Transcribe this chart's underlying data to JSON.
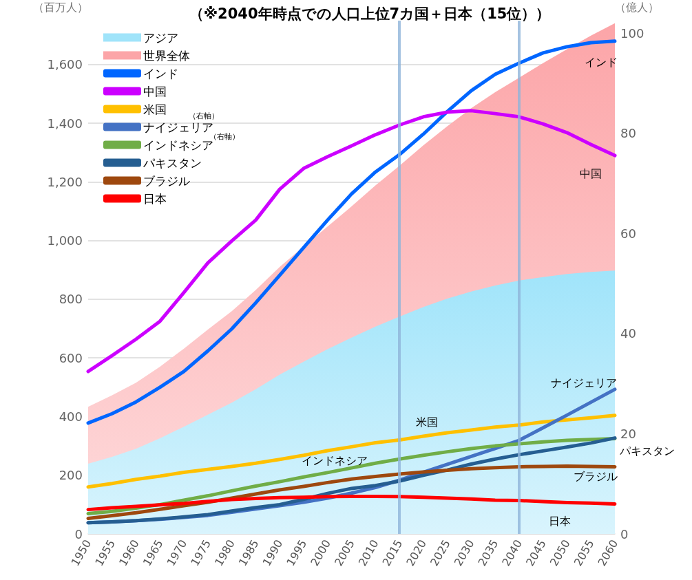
{
  "chart_data": {
    "type": "line",
    "title": "（※2040年時点での人口上位7カ国＋日本（15位））",
    "ylabel": "（百万人）",
    "y2label": "（億人）",
    "categories": [
      "1950",
      "1955",
      "1960",
      "1965",
      "1970",
      "1975",
      "1980",
      "1985",
      "1990",
      "1995",
      "2000",
      "2005",
      "2010",
      "2015",
      "2020",
      "2025",
      "2030",
      "2035",
      "2040",
      "2045",
      "2050",
      "2055",
      "2060"
    ],
    "series": [
      {
        "name": "アジア",
        "type": "area",
        "axis": "y2",
        "color": "#a0e4fa",
        "values": [
          14.0,
          15.4,
          17.0,
          19.1,
          21.4,
          23.8,
          26.2,
          28.9,
          31.8,
          34.4,
          36.9,
          39.2,
          41.4,
          43.4,
          45.3,
          47.0,
          48.4,
          49.6,
          50.6,
          51.3,
          51.9,
          52.3,
          52.6
        ]
      },
      {
        "name": "世界全体",
        "type": "area",
        "axis": "y2",
        "color": "#fca5a8",
        "values": [
          25.4,
          27.7,
          30.2,
          33.4,
          37.0,
          40.8,
          44.5,
          48.7,
          53.3,
          57.4,
          61.4,
          65.4,
          69.6,
          73.5,
          77.6,
          81.4,
          85.0,
          88.2,
          91.1,
          94.0,
          96.8,
          99.5,
          102
        ]
      },
      {
        "name": "インド",
        "color": "#0066ff",
        "values": [
          378,
          410,
          450,
          500,
          554,
          624,
          699,
          788,
          882,
          976,
          1070,
          1159,
          1234,
          1293,
          1363,
          1440,
          1511,
          1567,
          1605,
          1640,
          1661,
          1675,
          1680
        ]
      },
      {
        "name": "中国",
        "color": "#cc00ff",
        "values": [
          554,
          608,
          664,
          725,
          823,
          924,
          999,
          1070,
          1175,
          1246,
          1286,
          1323,
          1361,
          1394,
          1422,
          1438,
          1443,
          1433,
          1422,
          1398,
          1368,
          1328,
          1290
        ]
      },
      {
        "name": "米国",
        "color": "#ffc000",
        "values": [
          160,
          172,
          186,
          197,
          210,
          220,
          230,
          241,
          254,
          268,
          284,
          297,
          311,
          320,
          333,
          345,
          354,
          364,
          371,
          382,
          389,
          396,
          404
        ]
      },
      {
        "name": "ナイジェリア",
        "color": "#4472c4",
        "values": [
          38,
          41,
          45,
          50,
          56,
          63,
          74,
          85,
          96,
          108,
          122,
          139,
          158,
          183,
          210,
          237,
          264,
          291,
          319,
          362,
          405,
          449,
          493
        ]
      },
      {
        "name": "インドネシア",
        "color": "#70ad47",
        "values": [
          69,
          77,
          88,
          100,
          115,
          130,
          147,
          163,
          178,
          194,
          209,
          225,
          241,
          255,
          268,
          280,
          291,
          300,
          307,
          314,
          319,
          322,
          325
        ]
      },
      {
        "name": "パキスタン",
        "color": "#255e91",
        "values": [
          38,
          41,
          45,
          51,
          58,
          66,
          78,
          90,
          100,
          118,
          138,
          155,
          165,
          180,
          200,
          218,
          238,
          255,
          270,
          283,
          296,
          310,
          327
        ]
      },
      {
        "name": "ブラジル",
        "color": "#9e480e",
        "values": [
          53,
          62,
          72,
          84,
          96,
          108,
          122,
          136,
          150,
          162,
          175,
          187,
          196,
          204,
          211,
          217,
          222,
          226,
          229,
          230,
          231,
          230,
          229
        ]
      },
      {
        "name": "日本",
        "color": "#ff0000",
        "values": [
          83,
          89,
          94,
          99,
          104,
          111,
          117,
          121,
          124,
          125,
          127,
          128,
          128,
          127,
          125,
          122,
          119,
          115,
          114,
          110,
          107,
          105,
          102
        ]
      }
    ],
    "ylim": [
      0,
      1750
    ],
    "yticks": [
      0,
      {
        "value": 200,
        "label": "200"
      },
      {
        "value": 400,
        "label": "400"
      },
      {
        "value": 600,
        "label": "600"
      },
      {
        "value": 800,
        "label": "800"
      },
      {
        "value": 1000,
        "label": "1,000"
      },
      {
        "value": 1200,
        "label": "1,200"
      },
      {
        "value": 1400,
        "label": "1,400"
      },
      {
        "value": 1600,
        "label": "1,600"
      }
    ],
    "y2lim": [
      0,
      102.5
    ],
    "y2ticks": [
      0,
      20,
      40,
      60,
      80,
      100
    ],
    "ref_lines": [
      {
        "axis": "x",
        "value": "2015",
        "color": "#8fb4d9"
      },
      {
        "axis": "x",
        "value": "2040",
        "color": "#8fb4d9"
      }
    ],
    "annotations": [
      "インド",
      "中国",
      "ナイジェリア",
      "米国",
      "インドネシア",
      "パキスタン",
      "ブラジル",
      "日本",
      "（右軸）",
      "（右軸）"
    ],
    "grid": "y",
    "legend": "top left",
    "marker": "none",
    "line_style": "solid"
  }
}
